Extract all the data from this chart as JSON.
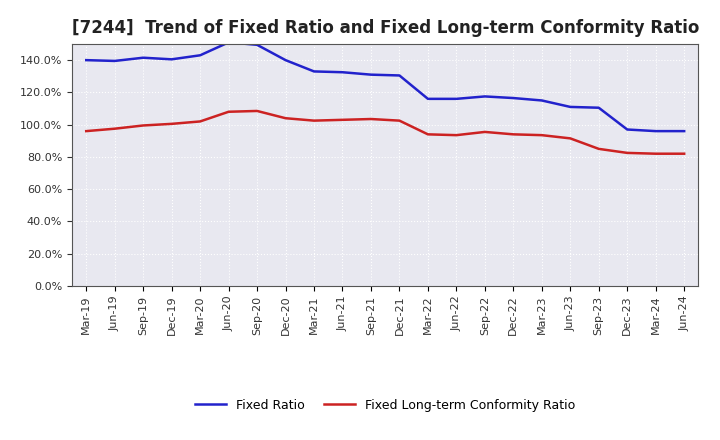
{
  "title": "[7244]  Trend of Fixed Ratio and Fixed Long-term Conformity Ratio",
  "labels": [
    "Mar-19",
    "Jun-19",
    "Sep-19",
    "Dec-19",
    "Mar-20",
    "Jun-20",
    "Sep-20",
    "Dec-20",
    "Mar-21",
    "Jun-21",
    "Sep-21",
    "Dec-21",
    "Mar-22",
    "Jun-22",
    "Sep-22",
    "Dec-22",
    "Mar-23",
    "Jun-23",
    "Sep-23",
    "Dec-23",
    "Mar-24",
    "Jun-24"
  ],
  "fixed_ratio": [
    140.0,
    139.5,
    141.5,
    140.5,
    143.0,
    151.0,
    149.5,
    140.0,
    133.0,
    132.5,
    131.0,
    130.5,
    116.0,
    116.0,
    117.5,
    116.5,
    115.0,
    111.0,
    110.5,
    97.0,
    96.0,
    96.0
  ],
  "fixed_lt_ratio": [
    96.0,
    97.5,
    99.5,
    100.5,
    102.0,
    108.0,
    108.5,
    104.0,
    102.5,
    103.0,
    103.5,
    102.5,
    94.0,
    93.5,
    95.5,
    94.0,
    93.5,
    91.5,
    85.0,
    82.5,
    82.0,
    82.0
  ],
  "fixed_ratio_color": "#2222CC",
  "fixed_lt_ratio_color": "#CC2222",
  "ylim": [
    0,
    150
  ],
  "yticks": [
    0,
    20,
    40,
    60,
    80,
    100,
    120,
    140
  ],
  "plot_bg_color": "#e8e8f0",
  "fig_bg_color": "#ffffff",
  "grid_color": "#ffffff",
  "legend_fixed": "Fixed Ratio",
  "legend_fixed_lt": "Fixed Long-term Conformity Ratio",
  "title_fontsize": 12,
  "tick_fontsize": 8,
  "legend_fontsize": 9
}
